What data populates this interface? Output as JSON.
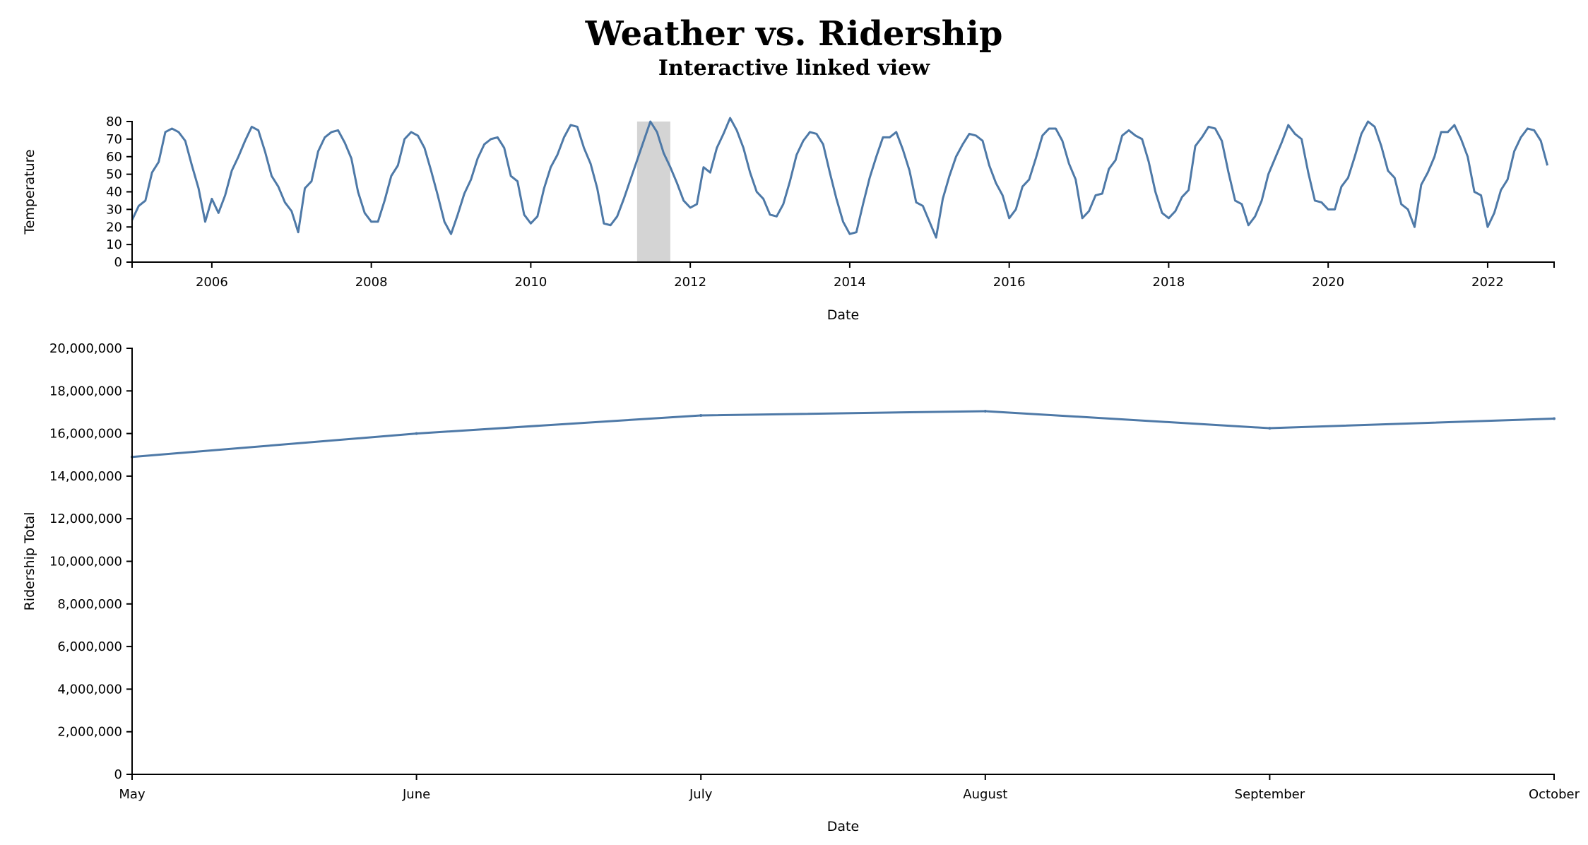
{
  "title": "Weather vs. Ridership",
  "subtitle": "Interactive linked view",
  "chart_data": [
    {
      "type": "line",
      "name": "temperature-overview",
      "xlabel": "Date",
      "ylabel": "Temperature",
      "x_domain": [
        "2005-01",
        "2022-11"
      ],
      "ylim": [
        0,
        80
      ],
      "y_ticks": [
        0,
        10,
        20,
        30,
        40,
        50,
        60,
        70,
        80
      ],
      "x_ticks": [
        "2006",
        "2008",
        "2010",
        "2012",
        "2014",
        "2016",
        "2018",
        "2020",
        "2022"
      ],
      "grid": false,
      "brush_selection": [
        "2011-05",
        "2011-10"
      ],
      "series": [
        {
          "start": "2005-01",
          "frequency": "monthly",
          "values": [
            24,
            32,
            35,
            51,
            57,
            74,
            76,
            74,
            69,
            55,
            42,
            23,
            36,
            28,
            38,
            52,
            60,
            69,
            77,
            75,
            63,
            49,
            43,
            34,
            29,
            17,
            42,
            46,
            63,
            71,
            74,
            75,
            68,
            59,
            40,
            28,
            23,
            23,
            35,
            49,
            55,
            70,
            74,
            72,
            65,
            52,
            38,
            23,
            16,
            27,
            39,
            47,
            59,
            67,
            70,
            71,
            65,
            49,
            46,
            27,
            22,
            26,
            42,
            54,
            61,
            71,
            78,
            77,
            65,
            56,
            42,
            22,
            21,
            26,
            36,
            47,
            58,
            69,
            80,
            74,
            62,
            54,
            45,
            35,
            31,
            33,
            54,
            51,
            65,
            73,
            82,
            75,
            65,
            51,
            40,
            36,
            27,
            26,
            33,
            46,
            61,
            69,
            74,
            73,
            67,
            51,
            36,
            23,
            16,
            17,
            33,
            48,
            60,
            71,
            71,
            74,
            64,
            52,
            34,
            32,
            23,
            14,
            36,
            49,
            60,
            67,
            73,
            72,
            69,
            55,
            45,
            38,
            25,
            30,
            43,
            47,
            59,
            72,
            76,
            76,
            69,
            56,
            47,
            25,
            29,
            38,
            39,
            53,
            58,
            72,
            75,
            72,
            70,
            57,
            40,
            28,
            25,
            29,
            37,
            41,
            66,
            71,
            77,
            76,
            69,
            51,
            35,
            33,
            21,
            26,
            35,
            50,
            59,
            68,
            78,
            73,
            70,
            51,
            35,
            34,
            30,
            30,
            43,
            48,
            60,
            73,
            80,
            77,
            66,
            52,
            48,
            33,
            30,
            20,
            44,
            51,
            60,
            74,
            74,
            78,
            70,
            60,
            40,
            38,
            20,
            28,
            41,
            47,
            63,
            71,
            76,
            75,
            69,
            55
          ]
        }
      ]
    },
    {
      "type": "line",
      "name": "ridership-detail",
      "xlabel": "Date",
      "ylabel": "Ridership Total",
      "ylim": [
        0,
        20000000
      ],
      "y_ticks": [
        "0",
        "2,000,000",
        "4,000,000",
        "6,000,000",
        "8,000,000",
        "10,000,000",
        "12,000,000",
        "14,000,000",
        "16,000,000",
        "18,000,000",
        "20,000,000"
      ],
      "categories": [
        "May",
        "June",
        "July",
        "August",
        "September",
        "October"
      ],
      "grid": false,
      "series": [
        {
          "values": [
            14900000,
            16000000,
            16850000,
            17050000,
            16250000,
            16700000
          ]
        }
      ]
    }
  ]
}
